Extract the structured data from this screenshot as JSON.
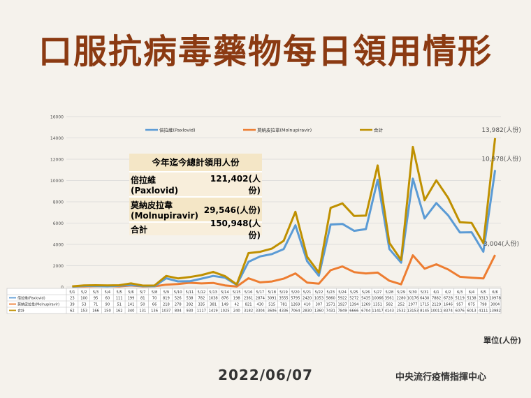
{
  "title": "口服抗病毒藥物每日領用情形",
  "date": "2022/06/07",
  "organization": "中央流行疫情指揮中心",
  "unit_label": "單位(人份)",
  "summary": {
    "header": "今年迄今總計領用人份",
    "rows": [
      {
        "label": "倍拉維\n(Paxlovid)",
        "value": "121,402(人份)"
      },
      {
        "label": "莫納皮拉韋\n(Molnupiravir)",
        "value": "29,546(人份)"
      },
      {
        "label": "合計",
        "value": "150,948(人份)"
      }
    ]
  },
  "colors": {
    "paxlovid": "#5b9bd5",
    "molnupiravir": "#ed7d31",
    "total": "#bf9000",
    "title": "#8b3a12"
  },
  "chart_data": {
    "type": "line",
    "ylim": [
      0,
      16000
    ],
    "yticks": [
      0,
      2000,
      4000,
      6000,
      8000,
      10000,
      12000,
      14000,
      16000
    ],
    "ytick_labels": [
      "0",
      "2000",
      "4000",
      "6000",
      "8000",
      "10000",
      "12000",
      "14000",
      "16000"
    ],
    "legend_position": "top",
    "grid": true,
    "categories": [
      "5/1",
      "5/2",
      "5/3",
      "5/4",
      "5/5",
      "5/6",
      "5/7",
      "5/8",
      "5/9",
      "5/10",
      "5/11",
      "5/12",
      "5/13",
      "5/14",
      "5/15",
      "5/16",
      "5/17",
      "5/18",
      "5/19",
      "5/20",
      "5/21",
      "5/22",
      "5/23",
      "5/24",
      "5/25",
      "5/26",
      "5/27",
      "5/28",
      "5/29",
      "5/30",
      "5/31",
      "6/1",
      "6/2",
      "6/3",
      "6/4",
      "6/5",
      "6/6"
    ],
    "series": [
      {
        "name": "倍拉維(Paxlovid)",
        "color": "#5b9bd5",
        "values": [
          23,
          100,
          95,
          60,
          111,
          199,
          81,
          70,
          819,
          526,
          538,
          782,
          1038,
          876,
          198,
          2361,
          2874,
          3091,
          3555,
          5795,
          2420,
          1053,
          5860,
          5922,
          5272,
          5435,
          10066,
          3561,
          2280,
          10176,
          6430,
          7882,
          6728,
          5119,
          5138,
          3313,
          10978
        ]
      },
      {
        "name": "莫納皮拉韋(Molnupiravir)",
        "color": "#ed7d31",
        "values": [
          39,
          53,
          71,
          90,
          51,
          141,
          50,
          66,
          218,
          278,
          392,
          335,
          381,
          149,
          42,
          821,
          430,
          515,
          781,
          1269,
          410,
          307,
          1571,
          1927,
          1394,
          1269,
          1351,
          582,
          252,
          2977,
          1715,
          2129,
          1646,
          957,
          875,
          798,
          3004
        ]
      },
      {
        "name": "合計",
        "color": "#bf9000",
        "values": [
          62,
          153,
          166,
          150,
          162,
          340,
          131,
          136,
          1037,
          804,
          930,
          1117,
          1419,
          1025,
          240,
          3182,
          3304,
          3606,
          4336,
          7064,
          2830,
          1360,
          7431,
          7849,
          6666,
          6704,
          11417,
          4143,
          2532,
          13153,
          8145,
          10011,
          8374,
          6076,
          6013,
          4111,
          13982
        ]
      }
    ],
    "end_labels": [
      "13,982(人份)",
      "10,978(人份)",
      "3,004(人份)"
    ]
  }
}
